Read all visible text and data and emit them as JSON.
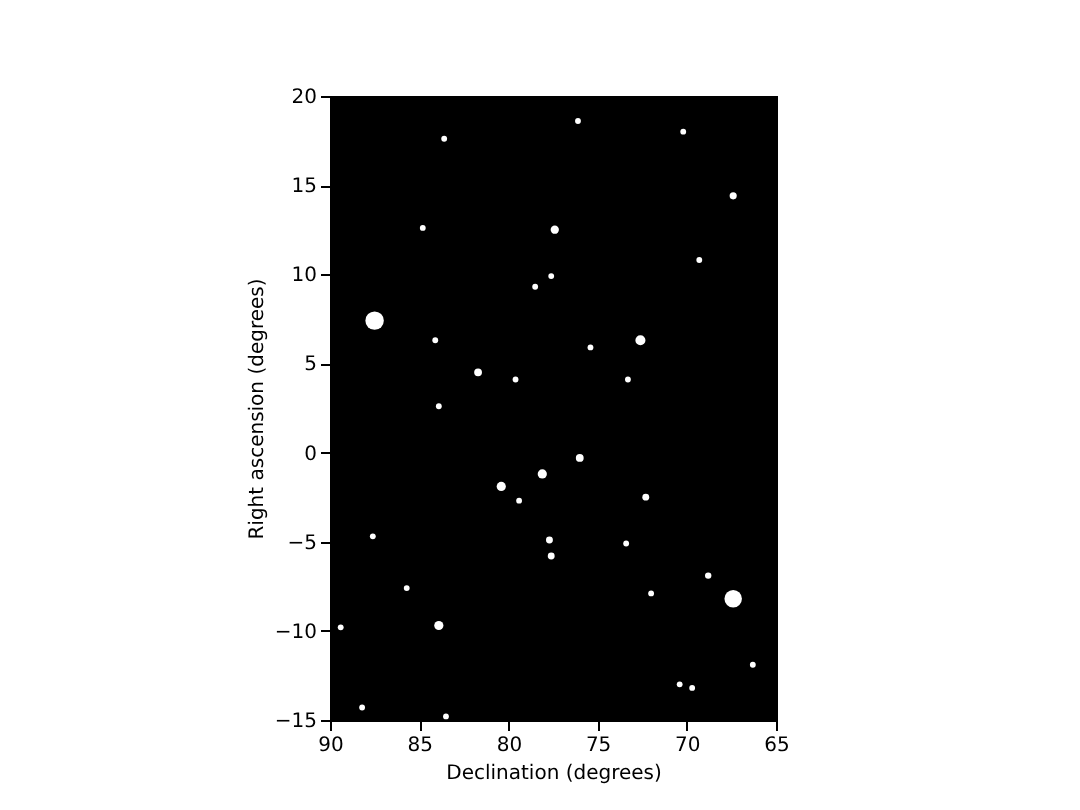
{
  "chart_data": {
    "type": "bubble",
    "xlabel": "Declination (degrees)",
    "ylabel": "Right ascension (degrees)",
    "x": [
      87.5,
      67.4,
      72.6,
      77.4,
      81.7,
      80.4,
      78.1,
      76.0,
      83.9,
      67.4,
      77.7,
      77.6,
      78.5,
      77.6,
      83.6,
      84.8,
      79.6,
      84.1,
      76.1,
      70.2,
      69.3,
      75.4,
      73.3,
      79.4,
      89.4,
      88.2,
      83.5,
      83.9,
      87.6,
      85.7,
      72.3,
      68.8,
      73.4,
      66.3,
      70.4,
      69.7,
      72.0
    ],
    "values": [
      7.4,
      -8.2,
      6.3,
      12.5,
      4.5,
      -1.9,
      -1.2,
      -0.3,
      -9.7,
      14.4,
      -4.9,
      -5.8,
      9.3,
      9.9,
      17.6,
      12.6,
      4.1,
      6.3,
      18.6,
      18.0,
      10.8,
      5.9,
      4.1,
      -2.7,
      -9.8,
      -14.3,
      -14.8,
      2.6,
      -4.7,
      -7.6,
      -2.5,
      -6.9,
      -5.1,
      -11.9,
      -13.0,
      -13.2,
      -7.9
    ],
    "sizes": [
      1,
      0.9,
      0.3,
      0.2,
      0.18,
      0.25,
      0.25,
      0.18,
      0.25,
      0.15,
      0.14,
      0.14,
      0.1,
      0.1,
      0.1,
      0.1,
      0.1,
      0.1,
      0.1,
      0.1,
      0.1,
      0.1,
      0.1,
      0.1,
      0.1,
      0.1,
      0.1,
      0.1,
      0.1,
      0.1,
      0.14,
      0.12,
      0.1,
      0.1,
      0.1,
      0.1,
      0.1
    ],
    "color": "#ffffff",
    "marker": "circle",
    "grid": false,
    "xlim": [
      90,
      65
    ],
    "xticks": [
      90,
      85,
      80,
      75,
      70,
      65
    ],
    "ylim": [
      -15,
      20
    ],
    "yticks": [
      -15,
      -10,
      -5,
      0,
      5,
      10,
      15,
      20
    ]
  }
}
